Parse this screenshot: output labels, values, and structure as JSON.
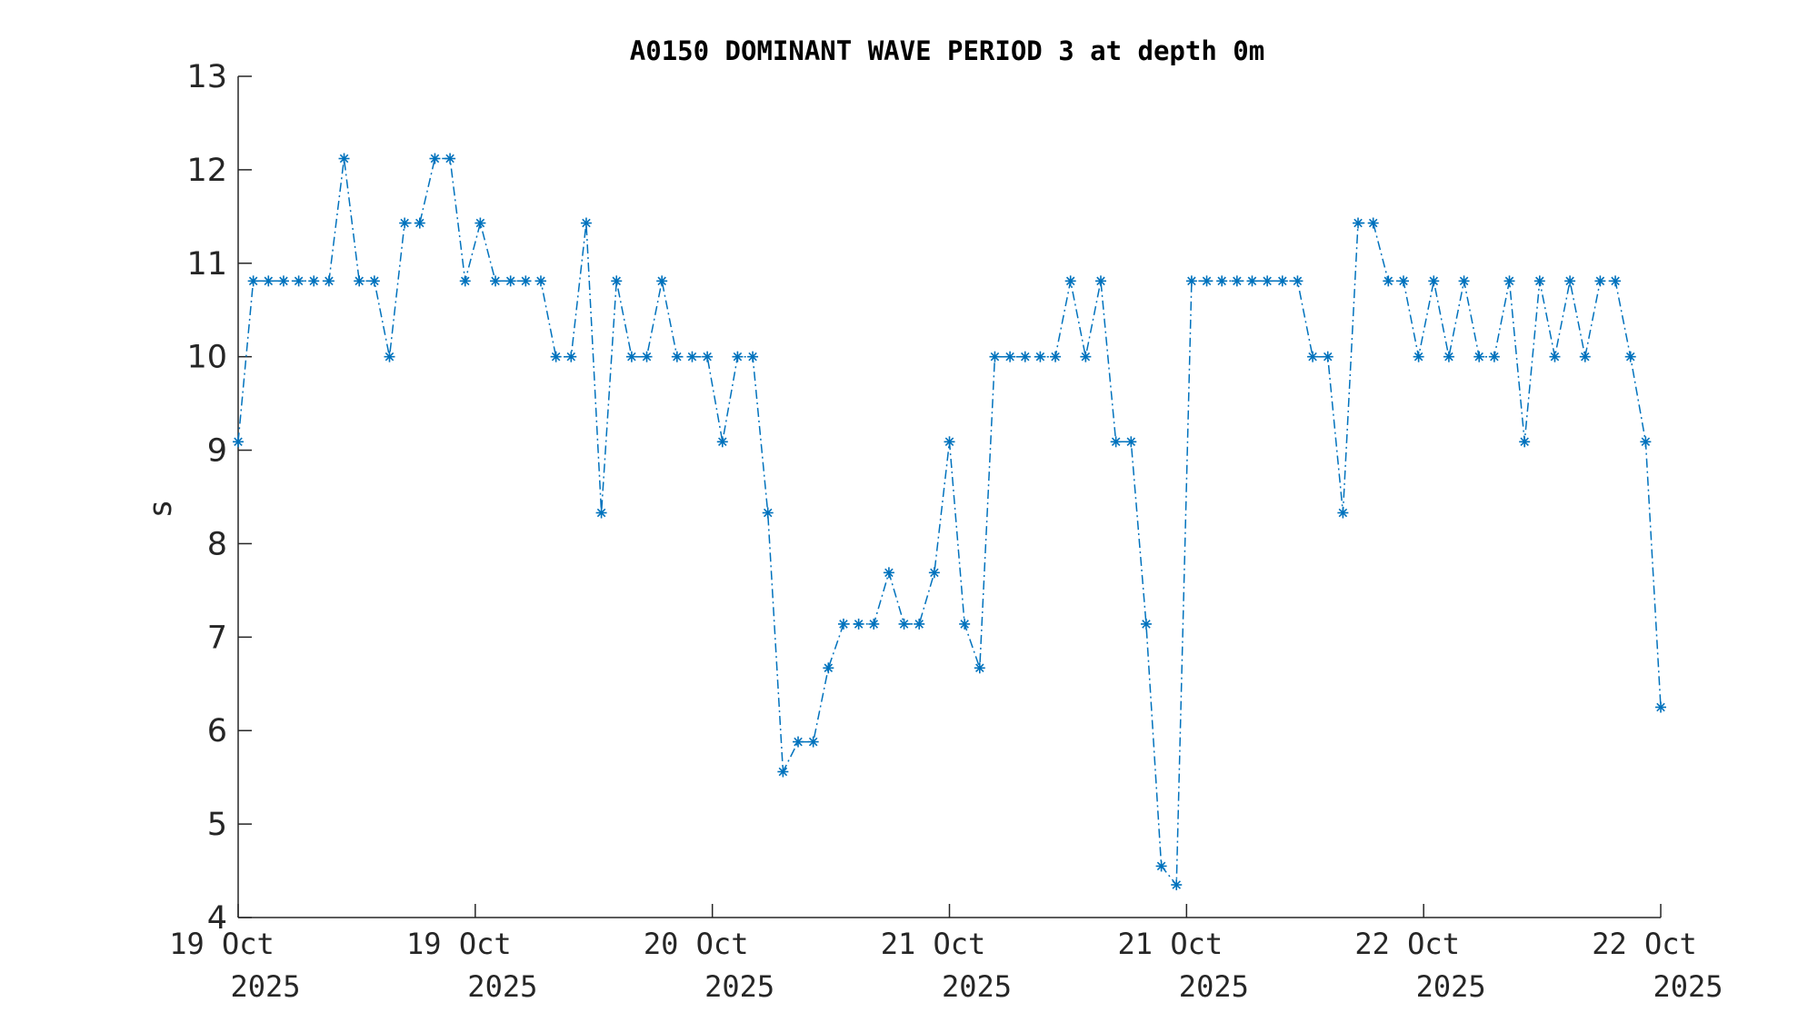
{
  "chart_data": {
    "type": "line",
    "title": "A0150 DOMINANT WAVE PERIOD 3 at depth 0m",
    "ylabel": "s",
    "xlabel": "",
    "ylim": [
      4,
      13
    ],
    "yticks": [
      4,
      5,
      6,
      7,
      8,
      9,
      10,
      11,
      12,
      13
    ],
    "xticks": [
      {
        "line1": "19 Oct",
        "line2": "2025"
      },
      {
        "line1": "19 Oct",
        "line2": "2025"
      },
      {
        "line1": "20 Oct",
        "line2": "2025"
      },
      {
        "line1": "21 Oct",
        "line2": "2025"
      },
      {
        "line1": "21 Oct",
        "line2": "2025"
      },
      {
        "line1": "22 Oct",
        "line2": "2025"
      },
      {
        "line1": "22 Oct",
        "line2": "2025"
      }
    ],
    "marker": "asterisk",
    "line_style": "dash-dot",
    "grid": false,
    "color": "#0072BD",
    "series": [
      {
        "values": [
          9.09,
          10.81,
          10.81,
          10.81,
          10.81,
          10.81,
          10.81,
          12.12,
          10.81,
          10.81,
          10.0,
          11.43,
          11.43,
          12.12,
          12.12,
          10.81,
          11.43,
          10.81,
          10.81,
          10.81,
          10.81,
          10.0,
          10.0,
          11.43,
          8.33,
          10.81,
          10.0,
          10.0,
          10.81,
          10.0,
          10.0,
          10.0,
          9.09,
          10.0,
          10.0,
          8.33,
          5.56,
          5.88,
          5.88,
          6.67,
          7.14,
          7.14,
          7.14,
          7.69,
          7.14,
          7.14,
          7.69,
          9.09,
          7.14,
          6.67,
          10.0,
          10.0,
          10.0,
          10.0,
          10.0,
          10.81,
          10.0,
          10.81,
          9.09,
          9.09,
          7.14,
          4.55,
          4.35,
          10.81,
          10.81,
          10.81,
          10.81,
          10.81,
          10.81,
          10.81,
          10.81,
          10.0,
          10.0,
          8.33,
          11.43,
          11.43,
          10.81,
          10.81,
          10.0,
          10.81,
          10.0,
          10.81,
          10.0,
          10.0,
          10.81,
          9.09,
          10.81,
          10.0,
          10.81,
          10.0,
          10.81,
          10.81,
          10.0,
          9.09,
          6.25
        ]
      }
    ]
  }
}
